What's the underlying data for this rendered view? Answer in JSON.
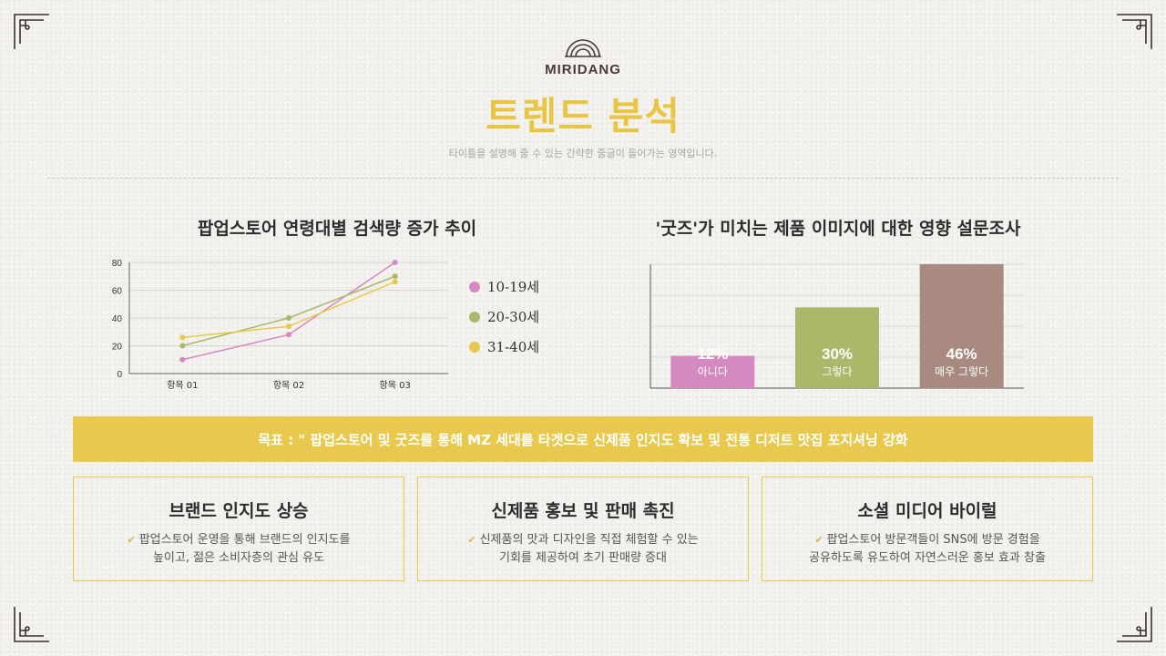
{
  "brand": {
    "name": "MIRIDANG"
  },
  "header": {
    "title": "트렌드 분석",
    "subtitle": "타이틀을 설명해 줄 수 있는 간략한 줄글이 들어가는 영역입니다."
  },
  "colors": {
    "accent": "#e8c94e",
    "title": "#e8c542",
    "series_pink": "#d48ac0",
    "series_green": "#aab86a",
    "series_yellow": "#e8c94e",
    "bar_pink": "#d48ac0",
    "bar_green": "#aab86a",
    "bar_brown": "#a88a80"
  },
  "left_chart": {
    "title": "팝업스토어 연령대별 검색량 증가 추이"
  },
  "right_chart": {
    "title": "'굿즈'가 미치는 제품 이미지에 대한 영향 설문조사"
  },
  "chart_data": [
    {
      "type": "line",
      "title": "팝업스토어 연령대별 검색량 증가 추이",
      "categories": [
        "항목 01",
        "항목 02",
        "항목 03"
      ],
      "ylim": [
        0,
        80
      ],
      "yticks": [
        "0",
        "20",
        "40",
        "60",
        "80"
      ],
      "grid": true,
      "legend": "right",
      "series": [
        {
          "name": "10-19세",
          "color": "#d48ac0",
          "values": [
            10,
            28,
            80
          ]
        },
        {
          "name": "20-30세",
          "color": "#aab86a",
          "values": [
            20,
            40,
            70
          ]
        },
        {
          "name": "31-40세",
          "color": "#e8c94e",
          "values": [
            26,
            34,
            66
          ]
        }
      ]
    },
    {
      "type": "bar",
      "title": "'굿즈'가 미치는 제품 이미지에 대한 영향 설문조사",
      "ylim": [
        0,
        46
      ],
      "grid": true,
      "bars": [
        {
          "value": 12,
          "value_label": "12%",
          "label": "아니다",
          "color": "#d48ac0"
        },
        {
          "value": 30,
          "value_label": "30%",
          "label": "그렇다",
          "color": "#aab86a"
        },
        {
          "value": 46,
          "value_label": "46%",
          "label": "매우 그렇다",
          "color": "#a88a80"
        }
      ]
    }
  ],
  "goal": {
    "text": "목표 : \" 팝업스토어 및 굿즈를 통해 MZ 세대를 타겟으로  신제품 인지도 확보 및 전통 디저트 맛집 포지셔닝 강화"
  },
  "cards": [
    {
      "title": "브랜드 인지도 상승",
      "line1": "팝업스토어 운영을 통해 브랜드의 인지도를",
      "line2": "높이고, 젊은 소비자층의 관심 유도"
    },
    {
      "title": "신제품 홍보 및 판매 촉진",
      "line1": "신제품의 맛과 디자인을 직접 체험할 수 있는",
      "line2": "기회를 제공하여 초기 판매량 증대"
    },
    {
      "title": "소셜 미디어 바이럴",
      "line1": "팝업스토어 방문객들이 SNS에 방문 경험을",
      "line2": "공유하도록 유도하여 자연스러운 홍보 효과 창출"
    }
  ]
}
